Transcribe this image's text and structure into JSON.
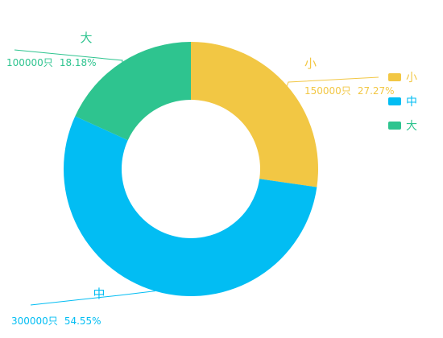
{
  "chart_data": {
    "type": "pie",
    "donut": true,
    "series": [
      {
        "name": "小",
        "value": 150000,
        "value_text": "150000只",
        "percent_text": "27.27%",
        "color": "#f2c744"
      },
      {
        "name": "中",
        "value": 300000,
        "value_text": "300000只",
        "percent_text": "54.55%",
        "color": "#02bdf3"
      },
      {
        "name": "大",
        "value": 100000,
        "value_text": "100000只",
        "percent_text": "18.18%",
        "color": "#2ec48f"
      }
    ],
    "legend": {
      "position": "right",
      "items": [
        "小",
        "中",
        "大"
      ]
    }
  }
}
